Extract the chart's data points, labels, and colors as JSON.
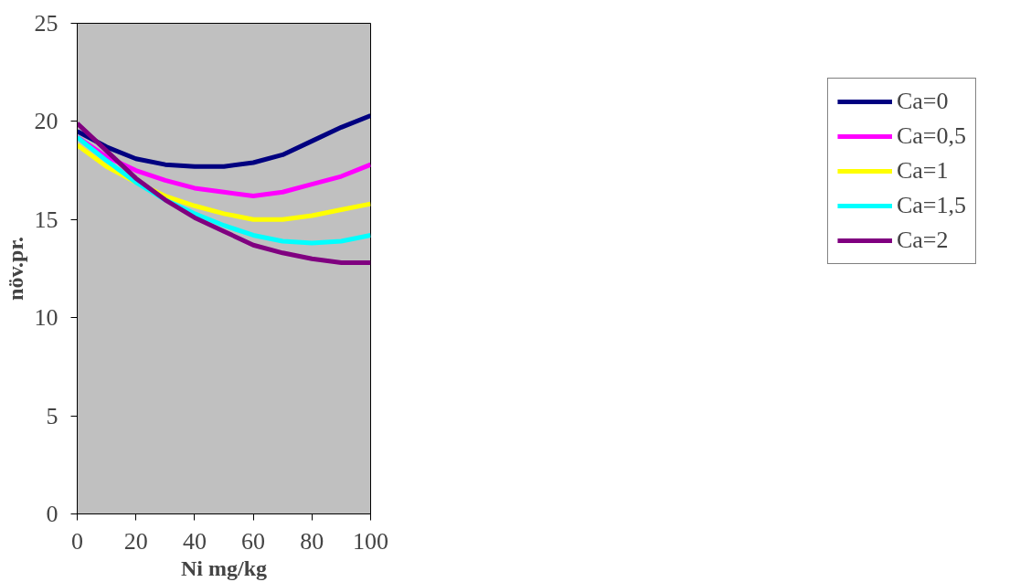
{
  "chart_data": {
    "type": "line",
    "xlabel": "Ni mg/kg",
    "ylabel": "növ.pr.",
    "x": [
      0,
      10,
      20,
      30,
      40,
      50,
      60,
      70,
      80,
      90,
      100
    ],
    "series": [
      {
        "name": "Ca=0",
        "color": "#000080",
        "values": [
          19.5,
          18.7,
          18.1,
          17.8,
          17.7,
          17.7,
          17.9,
          18.3,
          19.0,
          19.7,
          20.3
        ]
      },
      {
        "name": "Ca=0,5",
        "color": "#ff00ff",
        "values": [
          19.2,
          18.2,
          17.5,
          17.0,
          16.6,
          16.4,
          16.2,
          16.4,
          16.8,
          17.2,
          17.8
        ]
      },
      {
        "name": "Ca=1",
        "color": "#ffff00",
        "values": [
          18.8,
          17.7,
          16.9,
          16.2,
          15.7,
          15.3,
          15.0,
          15.0,
          15.2,
          15.5,
          15.8
        ]
      },
      {
        "name": "Ca=1,5",
        "color": "#00ffff",
        "values": [
          19.2,
          18.0,
          16.9,
          16.0,
          15.3,
          14.7,
          14.2,
          13.9,
          13.8,
          13.9,
          14.2
        ]
      },
      {
        "name": "Ca=2",
        "color": "#800080",
        "values": [
          19.9,
          18.5,
          17.1,
          16.0,
          15.1,
          14.4,
          13.7,
          13.3,
          13.0,
          12.8,
          12.8
        ]
      }
    ],
    "xlim": [
      0,
      100
    ],
    "xticks": [
      0,
      20,
      40,
      60,
      80,
      100
    ],
    "ylim": [
      0,
      25
    ],
    "yticks": [
      0,
      5,
      10,
      15,
      20,
      25
    ],
    "grid": false,
    "legend": "right",
    "marker": "none",
    "line_style": "solid"
  }
}
